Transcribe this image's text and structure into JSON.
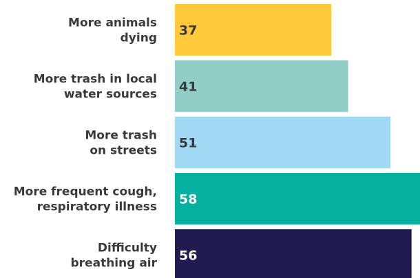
{
  "chart_data": {
    "type": "bar",
    "orientation": "horizontal",
    "categories": [
      [
        "More animals",
        "dying"
      ],
      [
        "More trash in local",
        "water sources"
      ],
      [
        "More trash",
        "on streets"
      ],
      [
        "More frequent cough,",
        "respiratory illness"
      ],
      [
        "Difficulty",
        "breathing air"
      ]
    ],
    "values": [
      37,
      41,
      51,
      58,
      56
    ],
    "bar_colors": [
      "#FEC93A",
      "#93CEC6",
      "#A1D8F4",
      "#05B09F",
      "#221B52"
    ],
    "label_colors": [
      "#3A3A3A",
      "#3A3A3A",
      "#3A3A3A",
      "#FFFFFF",
      "#FFFFFF"
    ],
    "xlim": [
      0,
      58
    ],
    "grid": false,
    "legend": "none",
    "data_labels": true
  }
}
